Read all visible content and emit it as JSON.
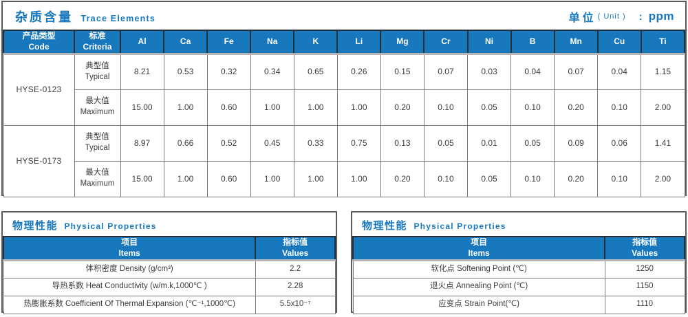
{
  "colors": {
    "accent_blue": "#1878be",
    "header_separator": "#232e38",
    "panel_border": "#595959",
    "cell_border": "#7a7a7a"
  },
  "trace_panel": {
    "title_zh": "杂质含量",
    "title_en": "Trace Elements",
    "unit_zh": "单位",
    "unit_en": "( Unit )",
    "unit_colon": ":",
    "unit_value": "ppm",
    "header": {
      "code": "产品类型\nCode",
      "criteria": "标准\nCriteria",
      "elements": [
        "Al",
        "Ca",
        "Fe",
        "Na",
        "K",
        "Li",
        "Mg",
        "Cr",
        "Ni",
        "B",
        "Mn",
        "Cu",
        "Ti"
      ]
    },
    "groups": [
      {
        "code": "HYSE-0123",
        "typical_label": "典型值\nTypical",
        "maximum_label": "最大值\nMaximum",
        "typical": [
          "8.21",
          "0.53",
          "0.32",
          "0.34",
          "0.65",
          "0.26",
          "0.15",
          "0.07",
          "0.03",
          "0.04",
          "0.07",
          "0.04",
          "1.15"
        ],
        "maximum": [
          "15.00",
          "1.00",
          "0.60",
          "1.00",
          "1.00",
          "1.00",
          "0.20",
          "0.10",
          "0.05",
          "0.10",
          "0.20",
          "0.10",
          "2.00"
        ]
      },
      {
        "code": "HYSE-0173",
        "typical_label": "典型值\nTypical",
        "maximum_label": "最大值\nMaximum",
        "typical": [
          "8.97",
          "0.66",
          "0.52",
          "0.45",
          "0.33",
          "0.75",
          "0.13",
          "0.05",
          "0.01",
          "0.05",
          "0.09",
          "0.06",
          "1.41"
        ],
        "maximum": [
          "15.00",
          "1.00",
          "0.60",
          "1.00",
          "1.00",
          "1.00",
          "0.20",
          "0.10",
          "0.05",
          "0.10",
          "0.20",
          "0.10",
          "2.00"
        ]
      }
    ]
  },
  "physical_left": {
    "title_zh": "物理性能",
    "title_en": "Physical Properties",
    "header_items": "项目\nItems",
    "header_values": "指标值\nValues",
    "rows": [
      {
        "item": "体积密度 Density (g/cm³)",
        "value": "2.2"
      },
      {
        "item": "导热系数 Heat Conductivity (w/m.k,1000℃ )",
        "value": "2.28"
      },
      {
        "item": "热膨胀系数 Coefficient Of Thermal Expansion (℃⁻¹,1000℃)",
        "value": "5.5x10⁻⁷"
      }
    ]
  },
  "physical_right": {
    "title_zh": "物理性能",
    "title_en": "Physical Properties",
    "header_items": "项目\nItems",
    "header_values": "指标值\nValues",
    "rows": [
      {
        "item": "软化点 Softening Point (℃)",
        "value": "1250"
      },
      {
        "item": "退火点 Annealing Point (℃)",
        "value": "1150"
      },
      {
        "item": "应变点 Strain Point(℃)",
        "value": "1110"
      }
    ]
  }
}
